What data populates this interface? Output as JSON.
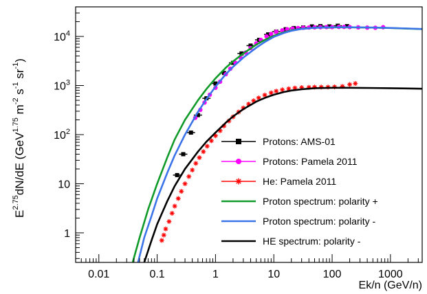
{
  "chart_data": {
    "type": "line",
    "xscale": "log",
    "yscale": "log",
    "xlim": [
      0.004,
      3500
    ],
    "ylim": [
      0.25,
      40000
    ],
    "xlabel": "Ek/n (GeV/n)",
    "ylabel_parts": {
      "a": "E",
      "a_sup": "2.75",
      "b": "dN/dE (GeV",
      "b_sup": "1.75",
      "c": "m",
      "c_sup": "-2",
      "d": "s",
      "d_sup": "-1",
      "e": "sr",
      "e_sup": "-1",
      "f": ")"
    },
    "x_ticks": [
      {
        "value": 0.01,
        "label": "0.01"
      },
      {
        "value": 0.1,
        "label": "0.1"
      },
      {
        "value": 1,
        "label": "1"
      },
      {
        "value": 10,
        "label": "10"
      },
      {
        "value": 100,
        "label": "100"
      },
      {
        "value": 1000,
        "label": "1000"
      }
    ],
    "y_ticks": [
      {
        "value": 1,
        "label": "1"
      },
      {
        "value": 10,
        "label": "10"
      },
      {
        "value": 100,
        "label": "10",
        "sup": "2"
      },
      {
        "value": 1000,
        "label": "10",
        "sup": "3"
      },
      {
        "value": 10000,
        "label": "10",
        "sup": "4"
      }
    ],
    "legend_position": "bottom-right",
    "series": [
      {
        "name": "Protons: AMS-01",
        "kind": "markers",
        "marker": "square",
        "color": "#000000",
        "points": [
          [
            0.22,
            15
          ],
          [
            0.28,
            40
          ],
          [
            0.38,
            110
          ],
          [
            0.5,
            250
          ],
          [
            0.7,
            550
          ],
          [
            1.0,
            1100
          ],
          [
            1.4,
            1800
          ],
          [
            2.0,
            2900
          ],
          [
            2.8,
            4500
          ],
          [
            4.0,
            6500
          ],
          [
            5.6,
            8500
          ],
          [
            8.0,
            11000
          ],
          [
            11,
            12500
          ],
          [
            16,
            14000
          ],
          [
            22,
            14800
          ],
          [
            32,
            15200
          ],
          [
            45,
            16000
          ],
          [
            63,
            16200
          ],
          [
            90,
            16000
          ],
          [
            125,
            16500
          ],
          [
            180,
            16200
          ]
        ]
      },
      {
        "name": "Protons: Pamela 2011",
        "kind": "markers",
        "marker": "circle",
        "color": "#ff00ff",
        "points": [
          [
            0.45,
            220
          ],
          [
            0.55,
            320
          ],
          [
            0.65,
            450
          ],
          [
            0.8,
            650
          ],
          [
            1.0,
            900
          ],
          [
            1.2,
            1200
          ],
          [
            1.5,
            1700
          ],
          [
            1.8,
            2200
          ],
          [
            2.2,
            2900
          ],
          [
            2.7,
            3700
          ],
          [
            3.3,
            4700
          ],
          [
            4.0,
            5800
          ],
          [
            5.0,
            7200
          ],
          [
            6.0,
            8500
          ],
          [
            7.5,
            10000
          ],
          [
            9.0,
            11200
          ],
          [
            11,
            12400
          ],
          [
            14,
            13300
          ],
          [
            17,
            14000
          ],
          [
            21,
            14400
          ],
          [
            26,
            14800
          ],
          [
            32,
            15000
          ],
          [
            40,
            15200
          ],
          [
            50,
            15300
          ],
          [
            63,
            15400
          ],
          [
            80,
            15500
          ],
          [
            100,
            15500
          ],
          [
            130,
            15600
          ],
          [
            160,
            15600
          ],
          [
            200,
            15500
          ],
          [
            280,
            15300
          ],
          [
            400,
            15100
          ],
          [
            550,
            15000
          ],
          [
            750,
            15400
          ]
        ]
      },
      {
        "name": "He: Pamela 2011",
        "kind": "markers",
        "marker": "star",
        "color": "#ff0000",
        "points": [
          [
            0.12,
            0.7
          ],
          [
            0.13,
            0.9
          ],
          [
            0.14,
            1.2
          ],
          [
            0.16,
            1.7
          ],
          [
            0.18,
            2.5
          ],
          [
            0.2,
            3.5
          ],
          [
            0.23,
            5
          ],
          [
            0.26,
            7
          ],
          [
            0.3,
            10
          ],
          [
            0.35,
            14
          ],
          [
            0.4,
            19
          ],
          [
            0.46,
            26
          ],
          [
            0.53,
            34
          ],
          [
            0.62,
            45
          ],
          [
            0.72,
            58
          ],
          [
            0.85,
            75
          ],
          [
            1.0,
            95
          ],
          [
            1.2,
            120
          ],
          [
            1.4,
            150
          ],
          [
            1.7,
            190
          ],
          [
            2.0,
            230
          ],
          [
            2.5,
            290
          ],
          [
            3.0,
            350
          ],
          [
            3.7,
            420
          ],
          [
            4.5,
            490
          ],
          [
            5.5,
            560
          ],
          [
            7,
            640
          ],
          [
            9,
            710
          ],
          [
            11,
            770
          ],
          [
            14,
            820
          ],
          [
            18,
            860
          ],
          [
            23,
            890
          ],
          [
            30,
            910
          ],
          [
            40,
            920
          ],
          [
            50,
            930
          ],
          [
            65,
            930
          ],
          [
            85,
            930
          ],
          [
            110,
            940
          ],
          [
            150,
            960
          ],
          [
            200,
            1050
          ],
          [
            250,
            1100
          ]
        ]
      },
      {
        "name": "Proton spectrum: polarity +",
        "kind": "line",
        "color": "#109a2a",
        "points": [
          [
            0.038,
            0.25
          ],
          [
            0.05,
            0.8
          ],
          [
            0.07,
            3
          ],
          [
            0.1,
            10
          ],
          [
            0.15,
            35
          ],
          [
            0.2,
            80
          ],
          [
            0.3,
            200
          ],
          [
            0.5,
            500
          ],
          [
            0.7,
            850
          ],
          [
            1,
            1400
          ],
          [
            1.5,
            2300
          ],
          [
            2,
            3100
          ],
          [
            3,
            4500
          ],
          [
            5,
            6800
          ],
          [
            7,
            8500
          ],
          [
            10,
            10300
          ],
          [
            15,
            12200
          ],
          [
            20,
            13300
          ],
          [
            30,
            14300
          ],
          [
            50,
            15000
          ],
          [
            100,
            15300
          ],
          [
            200,
            15300
          ],
          [
            500,
            15100
          ],
          [
            1000,
            14800
          ],
          [
            2000,
            14400
          ],
          [
            3500,
            14100
          ]
        ]
      },
      {
        "name": "Proton spectrum: polarity -",
        "kind": "line",
        "color": "#3b74e8",
        "points": [
          [
            0.047,
            0.25
          ],
          [
            0.06,
            0.8
          ],
          [
            0.08,
            2.2
          ],
          [
            0.1,
            5
          ],
          [
            0.15,
            17
          ],
          [
            0.2,
            38
          ],
          [
            0.3,
            100
          ],
          [
            0.5,
            290
          ],
          [
            0.7,
            530
          ],
          [
            1,
            950
          ],
          [
            1.5,
            1700
          ],
          [
            2,
            2400
          ],
          [
            3,
            3700
          ],
          [
            5,
            5900
          ],
          [
            7,
            7700
          ],
          [
            10,
            9800
          ],
          [
            15,
            11800
          ],
          [
            20,
            13000
          ],
          [
            30,
            14200
          ],
          [
            50,
            15000
          ],
          [
            100,
            15400
          ],
          [
            200,
            15400
          ],
          [
            500,
            15200
          ],
          [
            1000,
            14900
          ],
          [
            2000,
            14500
          ],
          [
            3500,
            14200
          ]
        ]
      },
      {
        "name": "HE spectrum: polarity -",
        "kind": "line",
        "color": "#000000",
        "points": [
          [
            0.06,
            0.25
          ],
          [
            0.08,
            0.7
          ],
          [
            0.1,
            1.5
          ],
          [
            0.15,
            4.5
          ],
          [
            0.2,
            9
          ],
          [
            0.3,
            20
          ],
          [
            0.5,
            45
          ],
          [
            0.7,
            72
          ],
          [
            1,
            110
          ],
          [
            1.5,
            175
          ],
          [
            2,
            235
          ],
          [
            3,
            330
          ],
          [
            5,
            470
          ],
          [
            7,
            560
          ],
          [
            10,
            650
          ],
          [
            15,
            740
          ],
          [
            20,
            790
          ],
          [
            30,
            840
          ],
          [
            50,
            880
          ],
          [
            100,
            900
          ],
          [
            200,
            900
          ],
          [
            500,
            890
          ],
          [
            1000,
            880
          ],
          [
            2000,
            870
          ],
          [
            3500,
            860
          ]
        ]
      }
    ]
  }
}
